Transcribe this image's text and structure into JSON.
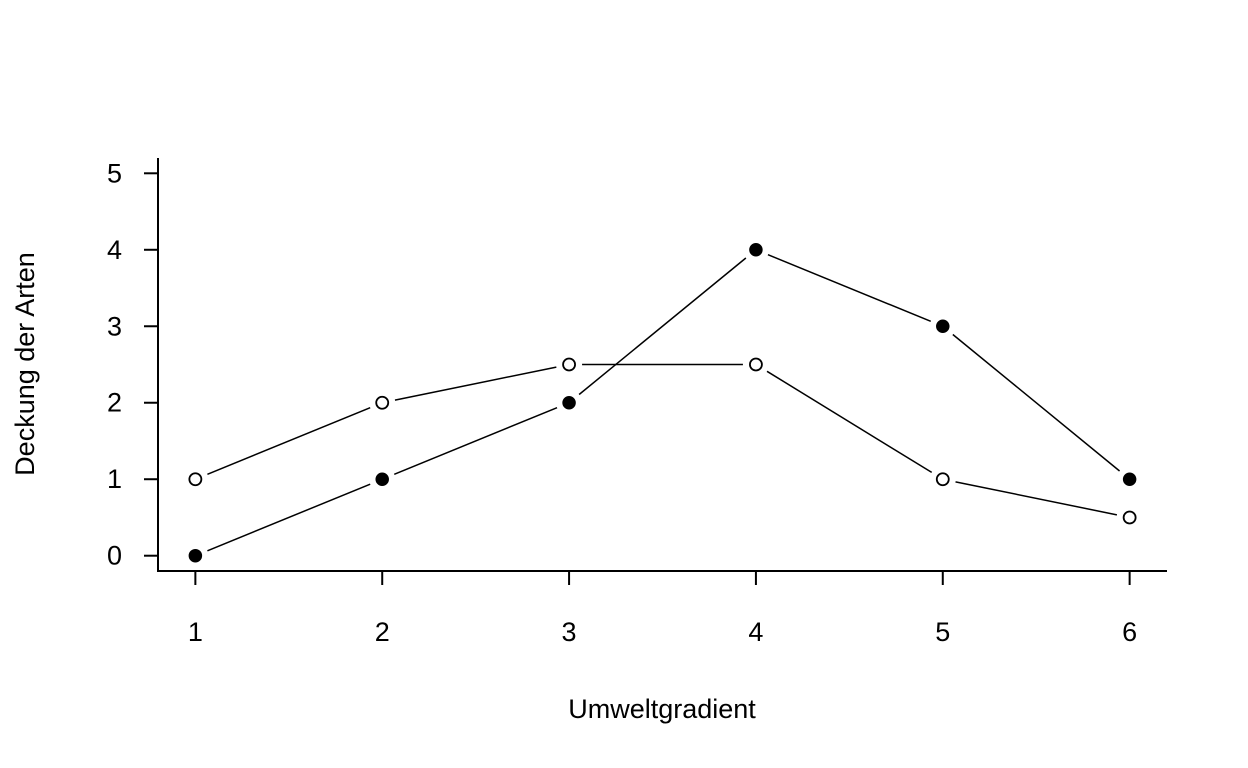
{
  "chart_data": {
    "type": "line",
    "title": "",
    "xlabel": "Umweltgradient",
    "ylabel": "Deckung der Arten",
    "x": [
      1,
      2,
      3,
      4,
      5,
      6
    ],
    "x_tick_labels": [
      "1",
      "2",
      "3",
      "4",
      "5",
      "6"
    ],
    "y_tick_labels": [
      "0",
      "1",
      "2",
      "3",
      "4",
      "5"
    ],
    "xlim": [
      0.8,
      6.2
    ],
    "ylim": [
      -0.2,
      5.2
    ],
    "grid": false,
    "legend": "none",
    "series": [
      {
        "marker": "filled-circle",
        "color": "#000000",
        "values": [
          0,
          1,
          2,
          4,
          3,
          1
        ]
      },
      {
        "marker": "open-circle",
        "color": "#000000",
        "values": [
          1,
          2,
          2.5,
          2.5,
          1,
          0.5
        ]
      }
    ]
  }
}
